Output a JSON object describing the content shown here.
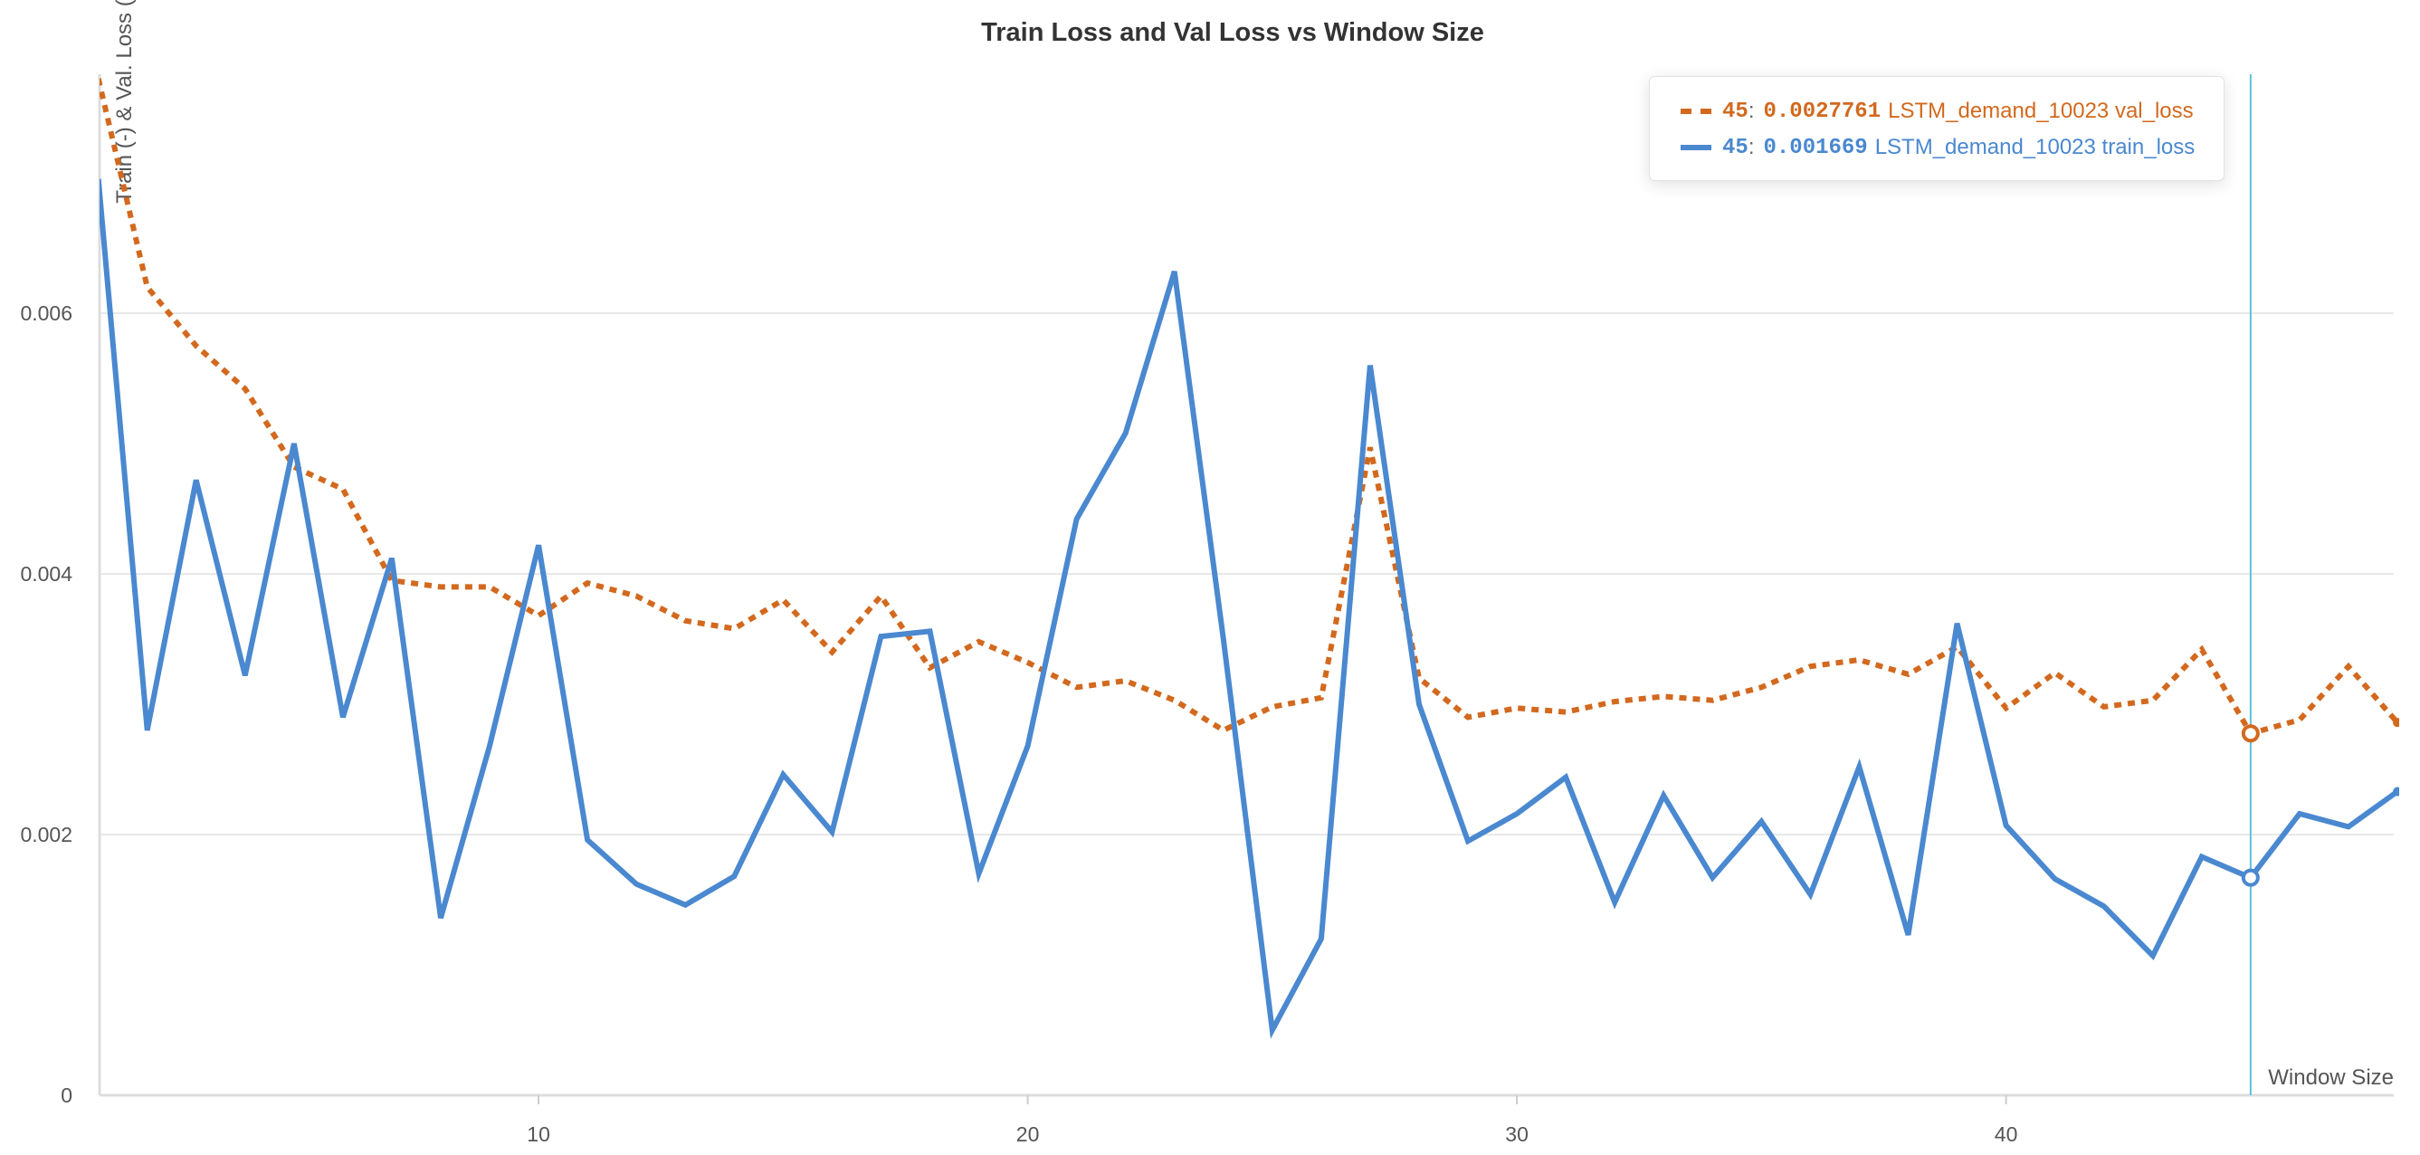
{
  "chart_data": {
    "type": "line",
    "title": "Train Loss and Val Loss vs Window Size",
    "xlabel": "Window Size",
    "ylabel": "Train (-) & Val. Loss (--)",
    "xlim": [
      1,
      48
    ],
    "ylim": [
      0,
      0.0078
    ],
    "x_ticks": [
      10,
      20,
      30,
      40
    ],
    "x_tick_labels": [
      "10",
      "20",
      "30",
      "40"
    ],
    "y_ticks": [
      0,
      0.002,
      0.004,
      0.006
    ],
    "y_tick_labels": [
      "0",
      "0.002",
      "0.004",
      "0.006"
    ],
    "grid": true,
    "hover_x": 45,
    "x": [
      1,
      2,
      3,
      4,
      5,
      6,
      7,
      8,
      9,
      10,
      11,
      12,
      13,
      14,
      15,
      16,
      17,
      18,
      19,
      20,
      21,
      22,
      23,
      24,
      25,
      26,
      27,
      28,
      29,
      30,
      31,
      32,
      33,
      34,
      35,
      36,
      37,
      38,
      39,
      40,
      41,
      42,
      43,
      44,
      45,
      46,
      47,
      48
    ],
    "series": [
      {
        "name": "LSTM_demand_10023 val_loss",
        "style": "dashed",
        "color": "#d2691e",
        "values": [
          0.0078,
          0.0062,
          0.00575,
          0.00542,
          0.00482,
          0.00465,
          0.00395,
          0.0039,
          0.0039,
          0.00368,
          0.00393,
          0.00383,
          0.00364,
          0.00358,
          0.0038,
          0.0034,
          0.00383,
          0.00328,
          0.00348,
          0.00332,
          0.00313,
          0.00318,
          0.00303,
          0.0028,
          0.00298,
          0.00305,
          0.00497,
          0.0032,
          0.0029,
          0.00297,
          0.00294,
          0.00302,
          0.00306,
          0.00303,
          0.00313,
          0.00329,
          0.00334,
          0.00323,
          0.00344,
          0.00297,
          0.00324,
          0.00298,
          0.00303,
          0.00342,
          0.0027761,
          0.00288,
          0.00329,
          0.00286
        ]
      },
      {
        "name": "LSTM_demand_10023 train_loss",
        "style": "solid",
        "color": "#4a88d0",
        "values": [
          0.00703,
          0.0028,
          0.00472,
          0.00322,
          0.005,
          0.0029,
          0.00412,
          0.00136,
          0.00268,
          0.00422,
          0.00196,
          0.00162,
          0.00146,
          0.00168,
          0.00246,
          0.00202,
          0.00352,
          0.00356,
          0.0017,
          0.00268,
          0.00442,
          0.00508,
          0.00632,
          0.0035,
          0.0005,
          0.0012,
          0.0056,
          0.003,
          0.00195,
          0.00216,
          0.00244,
          0.00148,
          0.0023,
          0.00167,
          0.0021,
          0.00154,
          0.00252,
          0.00123,
          0.00362,
          0.00207,
          0.00166,
          0.00145,
          0.00107,
          0.00183,
          0.001669,
          0.00216,
          0.00206,
          0.00233
        ]
      }
    ],
    "legend": {
      "position": "top-right",
      "rows": [
        {
          "x_label": "45",
          "colon": ":",
          "value": "0.0027761",
          "name": "LSTM_demand_10023 val_loss"
        },
        {
          "x_label": "45",
          "colon": ":",
          "value": "0.001669",
          "name": "LSTM_demand_10023 train_loss"
        }
      ]
    }
  },
  "colors": {
    "val": "#d2691e",
    "train": "#4a88d0",
    "cursor": "#5bc0de",
    "grid": "#e8e8e8",
    "axis": "#dddddd"
  }
}
